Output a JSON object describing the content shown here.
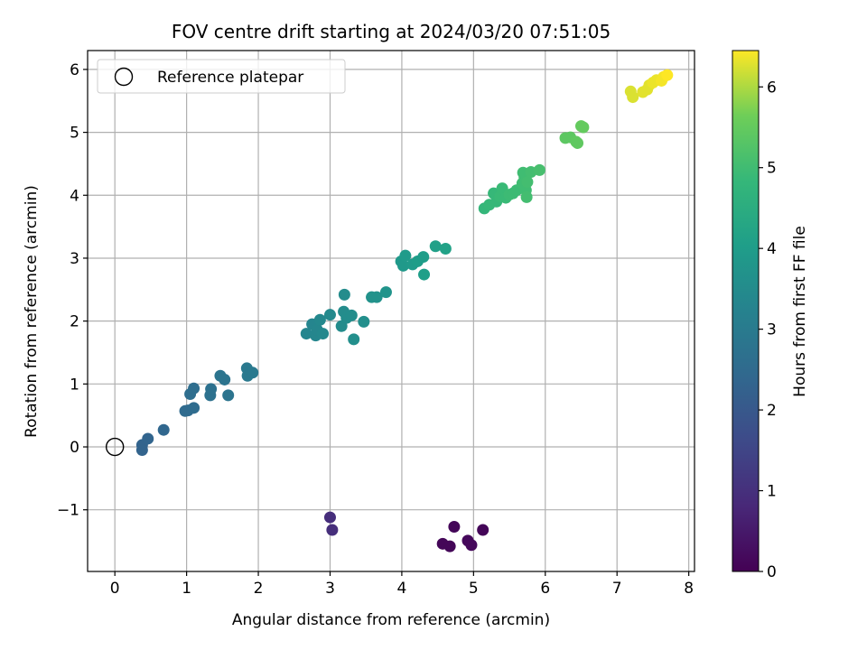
{
  "chart_data": {
    "type": "scatter",
    "title": "FOV centre drift starting at 2024/03/20 07:51:05",
    "xlabel": "Angular distance from reference (arcmin)",
    "ylabel": "Rotation from reference (arcmin)",
    "xlim": [
      -0.38,
      8.08
    ],
    "ylim": [
      -1.98,
      6.3
    ],
    "xticks": [
      0,
      1,
      2,
      3,
      4,
      5,
      6,
      7,
      8
    ],
    "yticks": [
      -1,
      0,
      1,
      2,
      3,
      4,
      5,
      6
    ],
    "grid": true,
    "legend": {
      "position": "top-left",
      "entries": [
        {
          "label": "Reference platepar",
          "marker": "open-circle",
          "x": 0,
          "y": 0
        }
      ]
    },
    "colorbar": {
      "label": "Hours from first FF file",
      "colormap": "viridis",
      "range": [
        0,
        6.45
      ],
      "ticks": [
        0,
        1,
        2,
        3,
        4,
        5,
        6
      ]
    },
    "series": [
      {
        "points": [
          [
            4.73,
            -1.27,
            0.1
          ],
          [
            5.13,
            -1.32,
            0.1
          ],
          [
            4.57,
            -1.54,
            0.1
          ],
          [
            4.67,
            -1.58,
            0.1
          ],
          [
            4.92,
            -1.49,
            0.15
          ],
          [
            4.97,
            -1.56,
            0.15
          ],
          [
            3.0,
            -1.12,
            0.95
          ],
          [
            3.03,
            -1.32,
            0.95
          ],
          [
            0.38,
            0.03,
            2.3
          ],
          [
            0.38,
            -0.05,
            2.3
          ],
          [
            0.46,
            0.13,
            2.35
          ],
          [
            0.68,
            0.27,
            2.4
          ],
          [
            0.98,
            0.57,
            2.5
          ],
          [
            1.02,
            0.58,
            2.5
          ],
          [
            1.1,
            0.62,
            2.55
          ],
          [
            1.05,
            0.84,
            2.6
          ],
          [
            1.1,
            0.93,
            2.6
          ],
          [
            1.33,
            0.82,
            2.7
          ],
          [
            1.34,
            0.92,
            2.7
          ],
          [
            1.47,
            1.13,
            2.8
          ],
          [
            1.53,
            1.07,
            2.8
          ],
          [
            1.58,
            0.82,
            2.8
          ],
          [
            1.84,
            1.25,
            2.95
          ],
          [
            1.85,
            1.13,
            2.95
          ],
          [
            1.92,
            1.18,
            2.95
          ],
          [
            2.67,
            1.8,
            3.3
          ],
          [
            2.75,
            1.95,
            3.3
          ],
          [
            2.8,
            1.77,
            3.35
          ],
          [
            2.82,
            1.86,
            3.35
          ],
          [
            2.86,
            2.02,
            3.4
          ],
          [
            2.9,
            1.8,
            3.4
          ],
          [
            3.0,
            2.1,
            3.45
          ],
          [
            3.16,
            1.92,
            3.5
          ],
          [
            3.19,
            2.15,
            3.5
          ],
          [
            3.2,
            2.42,
            3.5
          ],
          [
            3.23,
            2.05,
            3.55
          ],
          [
            3.3,
            2.09,
            3.55
          ],
          [
            3.33,
            1.71,
            3.6
          ],
          [
            3.47,
            1.99,
            3.6
          ],
          [
            3.58,
            2.38,
            3.7
          ],
          [
            3.65,
            2.38,
            3.7
          ],
          [
            3.78,
            2.46,
            3.75
          ],
          [
            3.99,
            2.95,
            3.9
          ],
          [
            4.02,
            2.88,
            3.9
          ],
          [
            4.05,
            3.04,
            3.95
          ],
          [
            4.15,
            2.9,
            3.95
          ],
          [
            4.22,
            2.95,
            4.0
          ],
          [
            4.3,
            3.02,
            4.0
          ],
          [
            4.31,
            2.74,
            4.05
          ],
          [
            4.47,
            3.19,
            4.1
          ],
          [
            4.61,
            3.15,
            4.15
          ],
          [
            5.15,
            3.79,
            4.8
          ],
          [
            5.22,
            3.85,
            4.85
          ],
          [
            5.28,
            4.03,
            4.85
          ],
          [
            5.32,
            3.9,
            4.85
          ],
          [
            5.37,
            3.98,
            4.9
          ],
          [
            5.4,
            4.11,
            4.9
          ],
          [
            5.45,
            3.96,
            4.9
          ],
          [
            5.5,
            4.01,
            4.95
          ],
          [
            5.55,
            4.03,
            4.95
          ],
          [
            5.6,
            4.08,
            4.95
          ],
          [
            5.68,
            4.19,
            5.0
          ],
          [
            5.69,
            4.36,
            5.0
          ],
          [
            5.71,
            4.29,
            5.0
          ],
          [
            5.73,
            4.08,
            5.0
          ],
          [
            5.74,
            3.97,
            5.05
          ],
          [
            5.75,
            4.21,
            5.05
          ],
          [
            5.8,
            4.37,
            5.05
          ],
          [
            5.92,
            4.4,
            5.1
          ],
          [
            6.28,
            4.91,
            5.4
          ],
          [
            6.35,
            4.92,
            5.4
          ],
          [
            6.43,
            4.85,
            5.45
          ],
          [
            6.45,
            4.83,
            5.45
          ],
          [
            6.5,
            5.1,
            5.5
          ],
          [
            6.53,
            5.08,
            5.5
          ],
          [
            7.19,
            5.65,
            6.25
          ],
          [
            7.22,
            5.56,
            6.25
          ],
          [
            7.36,
            5.64,
            6.3
          ],
          [
            7.42,
            5.68,
            6.3
          ],
          [
            7.45,
            5.75,
            6.3
          ],
          [
            7.5,
            5.79,
            6.35
          ],
          [
            7.55,
            5.83,
            6.35
          ],
          [
            7.62,
            5.82,
            6.4
          ],
          [
            7.65,
            5.88,
            6.4
          ],
          [
            7.7,
            5.91,
            6.45
          ]
        ]
      }
    ]
  }
}
